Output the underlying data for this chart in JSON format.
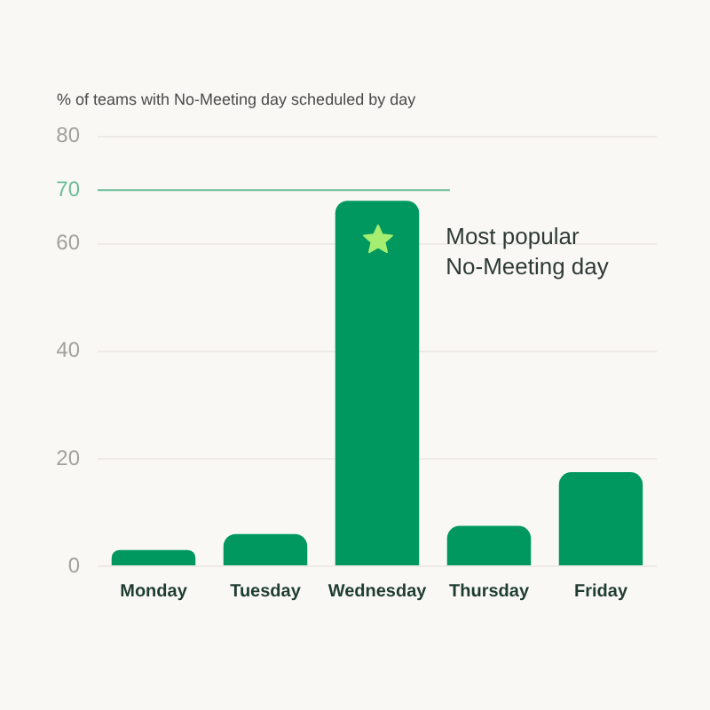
{
  "chart_data": {
    "type": "bar",
    "title": "% of teams with No-Meeting day scheduled by day",
    "categories": [
      "Monday",
      "Tuesday",
      "Wednesday",
      "Thursday",
      "Friday"
    ],
    "values": [
      3,
      6,
      68,
      7.5,
      17.5
    ],
    "color": "#01985f",
    "ylim": [
      0,
      80
    ],
    "yticks": [
      0,
      20,
      40,
      60,
      80
    ],
    "grid": "y",
    "ref_lines": [
      {
        "axis": "y",
        "value": 70,
        "label": "70",
        "color": "#6cbd98"
      }
    ],
    "annotations": [
      "Most popular No-Meeting day"
    ]
  }
}
